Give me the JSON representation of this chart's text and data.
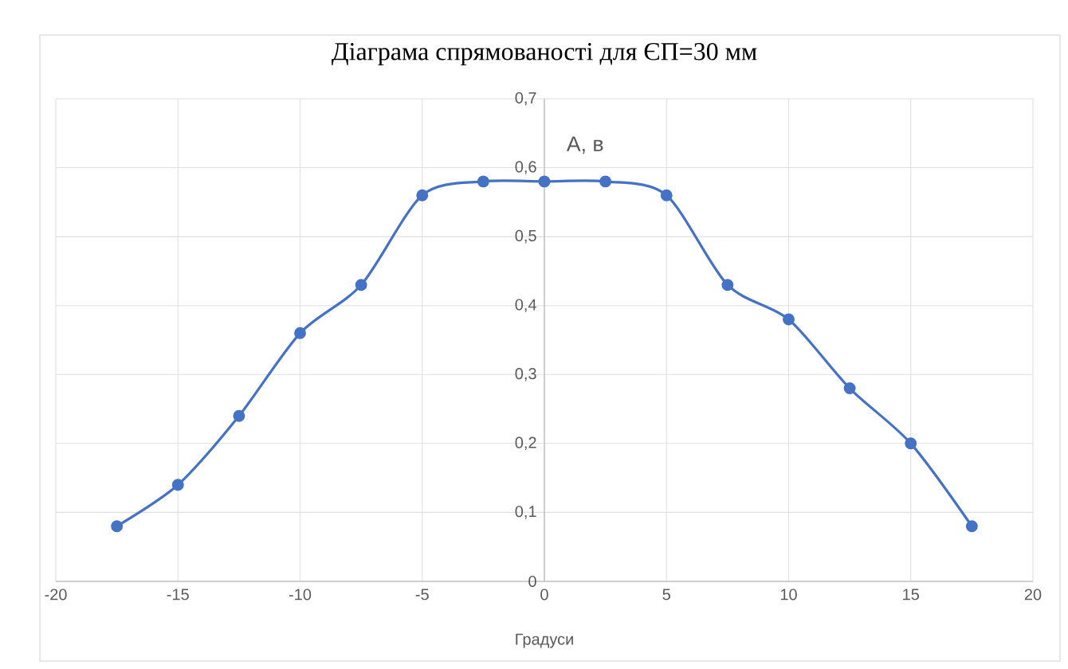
{
  "chart_data": {
    "type": "line",
    "title": "Діаграма спрямованості для ЄП=30 мм",
    "xlabel": "Градуси",
    "ylabel": "А, в",
    "x": [
      -17.5,
      -15,
      -12.5,
      -10,
      -7.5,
      -5,
      -2.5,
      0,
      2.5,
      5,
      7.5,
      10,
      12.5,
      15,
      17.5
    ],
    "series": [
      {
        "color": "#4472c4",
        "values": [
          0.08,
          0.14,
          0.24,
          0.36,
          0.43,
          0.56,
          0.58,
          0.58,
          0.58,
          0.56,
          0.43,
          0.38,
          0.28,
          0.2,
          0.08
        ]
      }
    ],
    "xlim": [
      -20,
      20
    ],
    "xticks": [
      -20,
      -15,
      -10,
      -5,
      0,
      5,
      10,
      15,
      20
    ],
    "ylim": [
      0,
      0.7
    ],
    "yticks": [
      0,
      {
        "value": 0.1,
        "label": "0,1"
      },
      {
        "value": 0.2,
        "label": "0,2"
      },
      {
        "value": 0.3,
        "label": "0,3"
      },
      {
        "value": 0.4,
        "label": "0,4"
      },
      {
        "value": 0.5,
        "label": "0,5"
      },
      {
        "value": 0.6,
        "label": "0,6"
      },
      {
        "value": 0.7,
        "label": "0,7"
      }
    ],
    "grid": true,
    "marker": "circle",
    "line_style": "solid"
  }
}
